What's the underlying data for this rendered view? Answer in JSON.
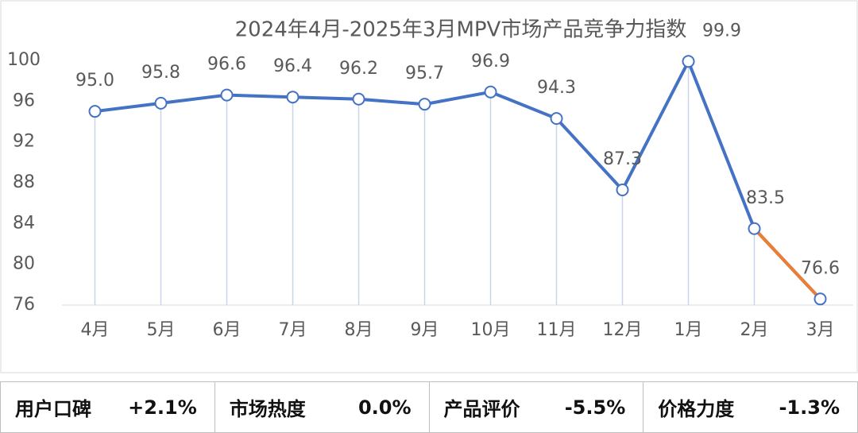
{
  "chart_data": {
    "type": "line",
    "title": "2024年4月-2025年3月MPV市场产品竞争力指数",
    "categories": [
      "4月",
      "5月",
      "6月",
      "7月",
      "8月",
      "9月",
      "10月",
      "11月",
      "12月",
      "1月",
      "2月",
      "3月"
    ],
    "series": [
      {
        "color": "#4472c4",
        "last_segment_color": "#ed7d31",
        "values": [
          95.0,
          95.8,
          96.6,
          96.4,
          96.2,
          95.7,
          96.9,
          94.3,
          87.3,
          99.9,
          83.5,
          76.6
        ],
        "value_labels": [
          "95.0",
          "95.8",
          "96.6",
          "96.4",
          "96.2",
          "95.7",
          "96.9",
          "94.3",
          "87.3",
          "99.9",
          "83.5",
          "76.6"
        ]
      }
    ],
    "ylim": [
      76,
      100
    ],
    "yticks": [
      76,
      80,
      84,
      88,
      92,
      96,
      100
    ],
    "drop_lines": true
  },
  "summary": [
    {
      "label": "用户口碑",
      "value": "+2.1%"
    },
    {
      "label": "市场热度",
      "value": "0.0%"
    },
    {
      "label": "产品评价",
      "value": "-5.5%"
    },
    {
      "label": "价格力度",
      "value": "-1.3%"
    }
  ]
}
